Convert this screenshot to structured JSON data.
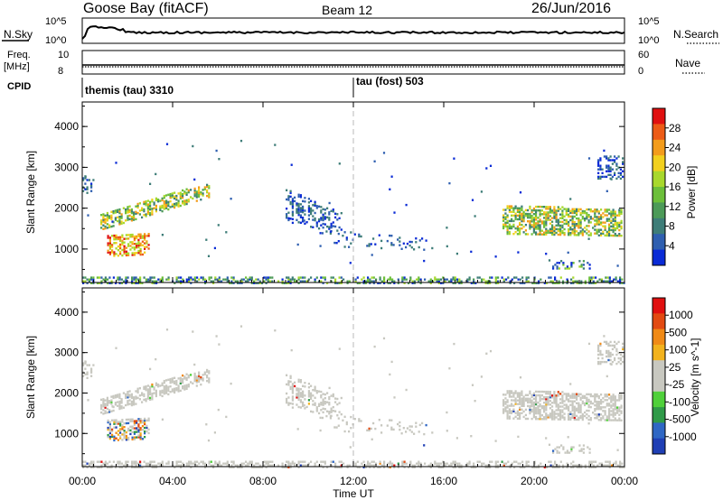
{
  "header": {
    "station": "Goose Bay (fitACF)",
    "beam": "Beam 12",
    "date": "26/Jun/2016"
  },
  "strips": {
    "nsky_label": "N.Sky",
    "nsearch_label": "N.Search",
    "noise_ticks": [
      "10^5",
      "10^0"
    ],
    "freq_label_1": "Freq.",
    "freq_label_2": "[MHz]",
    "freq_ticks": [
      "10",
      "8"
    ],
    "nave_label": "Nave",
    "nave_ticks": [
      "60",
      "0"
    ],
    "cpid_label": "CPID",
    "cpid_segments": [
      "themis (tau) 3310",
      "tau (fost) 503"
    ]
  },
  "colors": {
    "power_scale": [
      "#0a2bd6",
      "#2f5fb0",
      "#3e7d78",
      "#4c9a58",
      "#6cbf3a",
      "#a8d82c",
      "#f2d01e",
      "#f39c1c",
      "#ec5b16",
      "#e01010"
    ],
    "velocity_scale": [
      "#1f3fb5",
      "#2f67c4",
      "#2f9a48",
      "#4fd03a",
      "#c8c8c0",
      "#c8c8c0",
      "#f2b21d",
      "#f08a16",
      "#e24a12",
      "#e01010"
    ],
    "ground_scatter": "#c8c8c0"
  },
  "chart_data": [
    {
      "type": "heatmap",
      "title": "Power",
      "xlabel": "Time UT",
      "ylabel": "Slant Range [km]",
      "x_ticks": [
        "00:00",
        "04:00",
        "08:00",
        "12:00",
        "16:00",
        "20:00",
        "00:00"
      ],
      "y_ticks": [
        "1000",
        "2000",
        "3000",
        "4000"
      ],
      "xlim_hours": [
        0,
        24
      ],
      "ylim_km": [
        180,
        4600
      ],
      "colorbar": {
        "label": "Power [dB]",
        "ticks": [
          "4",
          "8",
          "12",
          "16",
          "20",
          "24",
          "28"
        ],
        "range": [
          0,
          30
        ]
      },
      "regions": [
        {
          "t": [
            0.8,
            5.5
          ],
          "range_km": [
            1300,
            2600
          ],
          "level": "mid-high",
          "description_hint": "slanted echo band"
        },
        {
          "t": [
            1.1,
            2.8
          ],
          "range_km": [
            850,
            1400
          ],
          "level": "high"
        },
        {
          "t": [
            0.0,
            24.0
          ],
          "range_km": [
            180,
            400
          ],
          "level": "low-mid"
        },
        {
          "t": [
            9.0,
            14.5
          ],
          "range_km": [
            1200,
            2500
          ],
          "level": "low"
        },
        {
          "t": [
            18.5,
            23.8
          ],
          "range_km": [
            1300,
            2200
          ],
          "level": "mid-high"
        },
        {
          "t": [
            22.9,
            23.9
          ],
          "range_km": [
            2700,
            3300
          ],
          "level": "low"
        }
      ]
    },
    {
      "type": "heatmap",
      "title": "Velocity",
      "xlabel": "Time UT",
      "ylabel": "Slant Range [km]",
      "x_ticks": [
        "00:00",
        "04:00",
        "08:00",
        "12:00",
        "16:00",
        "20:00",
        "00:00"
      ],
      "y_ticks": [
        "1000",
        "2000",
        "3000",
        "4000"
      ],
      "xlim_hours": [
        0,
        24
      ],
      "ylim_km": [
        180,
        4600
      ],
      "colorbar": {
        "label": "Velocity [m s^-1]",
        "ticks": [
          "1000",
          "500",
          "100",
          "25",
          "-25",
          "-100",
          "-500",
          "-1000"
        ]
      },
      "regions": [
        {
          "t": [
            0.8,
            5.5
          ],
          "range_km": [
            1300,
            2600
          ],
          "class": "ground-scatter"
        },
        {
          "t": [
            1.1,
            2.8
          ],
          "range_km": [
            850,
            1400
          ],
          "class": "mixed ±500"
        },
        {
          "t": [
            0.0,
            24.0
          ],
          "range_km": [
            180,
            400
          ],
          "class": "ground-scatter"
        },
        {
          "t": [
            18.5,
            23.8
          ],
          "range_km": [
            1300,
            2200
          ],
          "class": "ground-scatter"
        }
      ]
    }
  ]
}
